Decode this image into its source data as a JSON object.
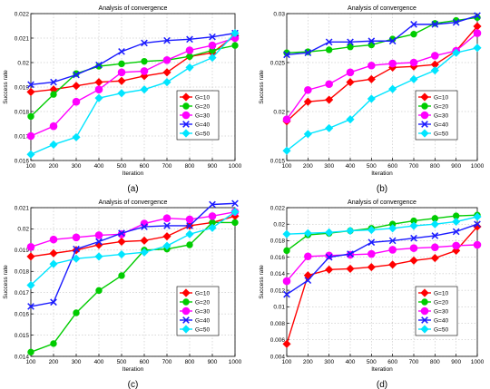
{
  "colors": {
    "g10": "#ff0000",
    "g20": "#00cc00",
    "g30": "#ff00ff",
    "g40": "#1a1aff",
    "g50": "#00e5ff"
  },
  "chart_data": [
    {
      "type": "line",
      "title": "Analysis of convergence",
      "xlabel": "Iteration",
      "ylabel": "Success rate",
      "caption": "(a)",
      "x": [
        100,
        200,
        300,
        400,
        500,
        600,
        700,
        800,
        900,
        1000
      ],
      "xlim": [
        100,
        1000
      ],
      "ylim": [
        0.016,
        0.022
      ],
      "yticks": [
        "0.016",
        "0.017",
        "0.018",
        "0.019",
        "0.02",
        "0.021",
        "0.022"
      ],
      "grid": true,
      "legend_position": "lower-right",
      "series": [
        {
          "name": "G=10",
          "color": "#ff0000",
          "marker": "diamond",
          "values": [
            0.0188,
            0.0189,
            0.01905,
            0.0192,
            0.01925,
            0.01945,
            0.0196,
            0.02025,
            0.0204,
            0.0211
          ]
        },
        {
          "name": "G=20",
          "color": "#00cc00",
          "marker": "dot",
          "values": [
            0.0178,
            0.0187,
            0.01955,
            0.01985,
            0.01995,
            0.02005,
            0.0201,
            0.02025,
            0.0205,
            0.0207
          ]
        },
        {
          "name": "G=30",
          "color": "#ff00ff",
          "marker": "circle",
          "values": [
            0.017,
            0.0174,
            0.0184,
            0.0189,
            0.0196,
            0.01965,
            0.0201,
            0.0205,
            0.0207,
            0.021
          ]
        },
        {
          "name": "G=40",
          "color": "#1a1aff",
          "marker": "x",
          "values": [
            0.0191,
            0.0192,
            0.0195,
            0.0199,
            0.02045,
            0.0208,
            0.0209,
            0.02095,
            0.02105,
            0.0212
          ]
        },
        {
          "name": "G=50",
          "color": "#00e5ff",
          "marker": "diamond",
          "values": [
            0.01625,
            0.01665,
            0.01695,
            0.01855,
            0.01875,
            0.0189,
            0.0192,
            0.0198,
            0.0202,
            0.0212
          ]
        }
      ]
    },
    {
      "type": "line",
      "title": "Analysis of convergence",
      "xlabel": "Iteration",
      "ylabel": "Success rate",
      "caption": "(b)",
      "x": [
        100,
        200,
        300,
        400,
        500,
        600,
        700,
        800,
        900,
        1000
      ],
      "xlim": [
        100,
        1000
      ],
      "ylim": [
        0.015,
        0.03
      ],
      "yticks": [
        "0.015",
        "0.02",
        "0.025",
        "0.03"
      ],
      "grid": true,
      "legend_position": "lower-right",
      "series": [
        {
          "name": "G=10",
          "color": "#ff0000",
          "marker": "diamond",
          "values": [
            0.019,
            0.021,
            0.0212,
            0.023,
            0.0233,
            0.0245,
            0.0246,
            0.0248,
            0.0262,
            0.0287
          ]
        },
        {
          "name": "G=20",
          "color": "#00cc00",
          "marker": "dot",
          "values": [
            0.026,
            0.0261,
            0.0263,
            0.0266,
            0.0268,
            0.0274,
            0.0279,
            0.029,
            0.0293,
            0.0296
          ]
        },
        {
          "name": "G=30",
          "color": "#ff00ff",
          "marker": "circle",
          "values": [
            0.0192,
            0.0222,
            0.0228,
            0.024,
            0.0247,
            0.0249,
            0.025,
            0.0257,
            0.0262,
            0.028
          ]
        },
        {
          "name": "G=40",
          "color": "#1a1aff",
          "marker": "x",
          "values": [
            0.0258,
            0.026,
            0.0271,
            0.0271,
            0.0272,
            0.0272,
            0.0289,
            0.0289,
            0.0291,
            0.0298
          ]
        },
        {
          "name": "G=50",
          "color": "#00e5ff",
          "marker": "diamond",
          "values": [
            0.016,
            0.0177,
            0.0183,
            0.0192,
            0.0213,
            0.0223,
            0.0233,
            0.0242,
            0.026,
            0.0265
          ]
        }
      ]
    },
    {
      "type": "line",
      "title": "Analysis of convergence",
      "xlabel": "Iteration",
      "ylabel": "Success rate",
      "caption": "(c)",
      "x": [
        100,
        200,
        300,
        400,
        500,
        600,
        700,
        800,
        900,
        1000
      ],
      "xlim": [
        100,
        1000
      ],
      "ylim": [
        0.014,
        0.021
      ],
      "yticks": [
        "0.014",
        "0.015",
        "0.016",
        "0.017",
        "0.018",
        "0.019",
        "0.02",
        "0.021"
      ],
      "grid": true,
      "legend_position": "lower-right",
      "series": [
        {
          "name": "G=10",
          "color": "#ff0000",
          "marker": "diamond",
          "values": [
            0.0187,
            0.01885,
            0.019,
            0.01925,
            0.0194,
            0.01945,
            0.01965,
            0.02015,
            0.0203,
            0.0206
          ]
        },
        {
          "name": "G=20",
          "color": "#00cc00",
          "marker": "dot",
          "values": [
            0.0142,
            0.0146,
            0.01605,
            0.0171,
            0.0178,
            0.019,
            0.01905,
            0.01925,
            0.0203,
            0.0203
          ]
        },
        {
          "name": "G=30",
          "color": "#ff00ff",
          "marker": "circle",
          "values": [
            0.01915,
            0.0195,
            0.0196,
            0.0197,
            0.01975,
            0.02025,
            0.0205,
            0.02045,
            0.0206,
            0.0208
          ]
        },
        {
          "name": "G=40",
          "color": "#1a1aff",
          "marker": "x",
          "values": [
            0.01635,
            0.01655,
            0.01905,
            0.0194,
            0.0198,
            0.0201,
            0.02015,
            0.02015,
            0.02115,
            0.0212
          ]
        },
        {
          "name": "G=50",
          "color": "#00e5ff",
          "marker": "diamond",
          "values": [
            0.01735,
            0.01835,
            0.0186,
            0.0187,
            0.0188,
            0.0189,
            0.0192,
            0.01975,
            0.02005,
            0.0208
          ]
        }
      ]
    },
    {
      "type": "line",
      "title": "Analysis of convergence",
      "xlabel": "Iteration",
      "ylabel": "Success rate",
      "caption": "(d)",
      "x": [
        100,
        200,
        300,
        400,
        500,
        600,
        700,
        800,
        900,
        1000
      ],
      "xlim": [
        100,
        1000
      ],
      "ylim": [
        0.004,
        0.022
      ],
      "yticks": [
        "0.004",
        "0.006",
        "0.008",
        "0.01",
        "0.012",
        "0.014",
        "0.016",
        "0.018",
        "0.02",
        "0.022"
      ],
      "grid": true,
      "legend_position": "lower-right",
      "series": [
        {
          "name": "G=10",
          "color": "#ff0000",
          "marker": "diamond",
          "values": [
            0.0055,
            0.0138,
            0.0145,
            0.0146,
            0.0148,
            0.0151,
            0.0156,
            0.0159,
            0.0168,
            0.0197
          ]
        },
        {
          "name": "G=20",
          "color": "#00cc00",
          "marker": "dot",
          "values": [
            0.0168,
            0.0187,
            0.0189,
            0.0192,
            0.0195,
            0.02,
            0.0204,
            0.0207,
            0.021,
            0.0211
          ]
        },
        {
          "name": "G=30",
          "color": "#ff00ff",
          "marker": "circle",
          "values": [
            0.0131,
            0.0161,
            0.0162,
            0.0163,
            0.0164,
            0.0169,
            0.0171,
            0.0172,
            0.0174,
            0.0175
          ]
        },
        {
          "name": "G=40",
          "color": "#1a1aff",
          "marker": "x",
          "values": [
            0.0115,
            0.0132,
            0.016,
            0.0164,
            0.0178,
            0.018,
            0.0183,
            0.0186,
            0.0191,
            0.02
          ]
        },
        {
          "name": "G=50",
          "color": "#00e5ff",
          "marker": "diamond",
          "values": [
            0.0188,
            0.0189,
            0.019,
            0.0192,
            0.0193,
            0.0195,
            0.0198,
            0.02,
            0.0203,
            0.0209
          ]
        }
      ]
    }
  ]
}
